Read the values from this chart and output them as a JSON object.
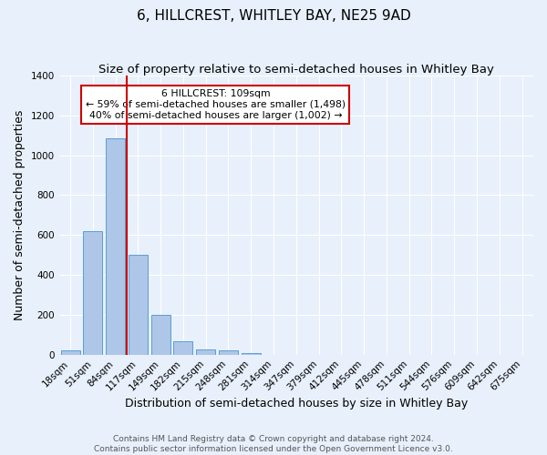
{
  "title": "6, HILLCREST, WHITLEY BAY, NE25 9AD",
  "subtitle": "Size of property relative to semi-detached houses in Whitley Bay",
  "xlabel": "Distribution of semi-detached houses by size in Whitley Bay",
  "ylabel": "Number of semi-detached properties",
  "bar_labels": [
    "18sqm",
    "51sqm",
    "84sqm",
    "117sqm",
    "149sqm",
    "182sqm",
    "215sqm",
    "248sqm",
    "281sqm",
    "314sqm",
    "347sqm",
    "379sqm",
    "412sqm",
    "445sqm",
    "478sqm",
    "511sqm",
    "544sqm",
    "576sqm",
    "609sqm",
    "642sqm",
    "675sqm"
  ],
  "bar_values": [
    22,
    620,
    1085,
    500,
    200,
    65,
    28,
    20,
    10,
    0,
    0,
    0,
    0,
    0,
    0,
    0,
    0,
    0,
    0,
    0,
    0
  ],
  "bar_color": "#aec6e8",
  "bar_edge_color": "#5a9fd4",
  "vline_x": 2.5,
  "vline_color": "#cc0000",
  "annotation_text": "6 HILLCREST: 109sqm\n← 59% of semi-detached houses are smaller (1,498)\n40% of semi-detached houses are larger (1,002) →",
  "annotation_box_color": "#ffffff",
  "annotation_box_edge": "#cc0000",
  "ylim": [
    0,
    1400
  ],
  "yticks": [
    0,
    200,
    400,
    600,
    800,
    1000,
    1200,
    1400
  ],
  "footer_text": "Contains HM Land Registry data © Crown copyright and database right 2024.\nContains public sector information licensed under the Open Government Licence v3.0.",
  "bg_color": "#e8f0fb",
  "plot_bg_color": "#e8f0fb",
  "title_fontsize": 11,
  "subtitle_fontsize": 9.5,
  "axis_label_fontsize": 9,
  "tick_fontsize": 7.5,
  "footer_fontsize": 6.5
}
